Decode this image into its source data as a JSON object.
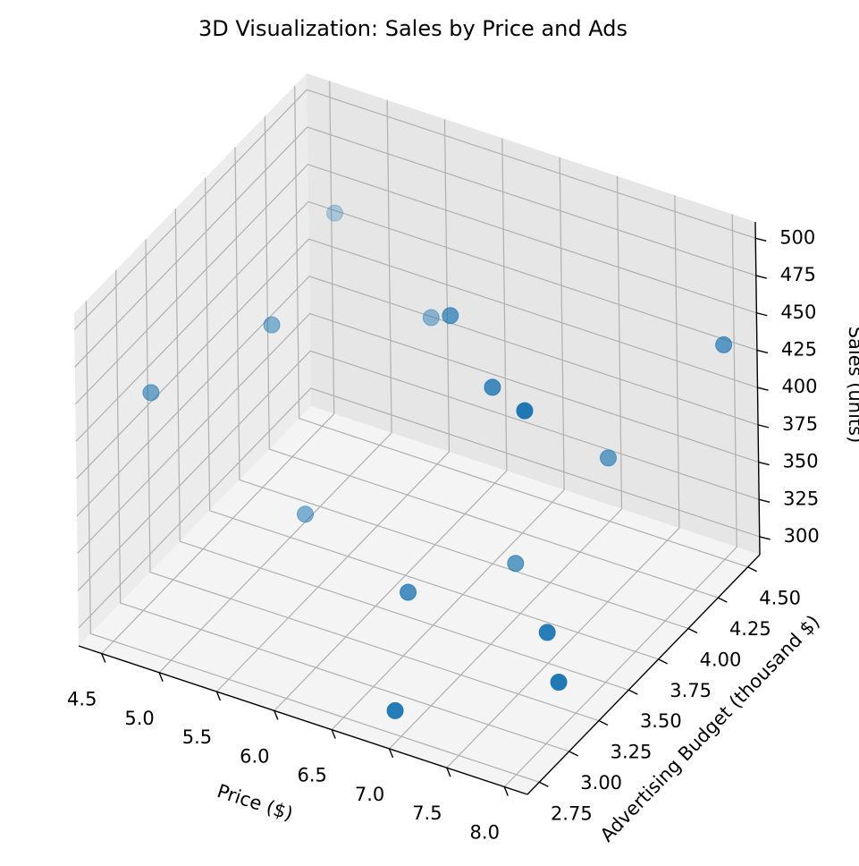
{
  "chart_data": {
    "type": "scatter3d",
    "title": "3D Visualization: Sales by Price and Ads",
    "xlabel": "Price ($)",
    "ylabel": "Advertising Budget (thousand $)",
    "zlabel": "Sales (units)",
    "color": "#1f77b4",
    "depthshade": true,
    "grid": true,
    "x": [
      4.73,
      4.99,
      4.55,
      5.77,
      6.55,
      7.12,
      7.81,
      8.11,
      7.3,
      5.26,
      6.56,
      6.89,
      7.77,
      7.97,
      6.95
    ],
    "y": [
      4.41,
      3.63,
      3.04,
      4.21,
      3.63,
      3.43,
      3.04,
      4.41,
      4.21,
      3.63,
      3.24,
      3.82,
      3.24,
      3.14,
      2.75
    ],
    "z": [
      444,
      440,
      432,
      417,
      486,
      469,
      503,
      442,
      362,
      320,
      333,
      313,
      337,
      317,
      304
    ],
    "xlim": [
      4.3,
      8.2
    ],
    "ylim": [
      2.65,
      4.6
    ],
    "zlim": [
      288,
      511
    ],
    "xticks": [
      4.5,
      {
        "value": 5,
        "label": "5.0"
      },
      5.5,
      {
        "value": 6,
        "label": "6.0"
      },
      6.5,
      {
        "value": 7,
        "label": "7.0"
      },
      7.5,
      {
        "value": 8,
        "label": "8.0"
      }
    ],
    "yticks": [
      2.75,
      {
        "value": 3,
        "label": "3.00"
      },
      3.25,
      {
        "value": 3.5,
        "label": "3.50"
      },
      3.75,
      {
        "value": 4,
        "label": "4.00"
      },
      4.25,
      {
        "value": 4.5,
        "label": "4.50"
      }
    ],
    "zticks": [
      300,
      325,
      350,
      375,
      400,
      425,
      450,
      475,
      500
    ]
  }
}
